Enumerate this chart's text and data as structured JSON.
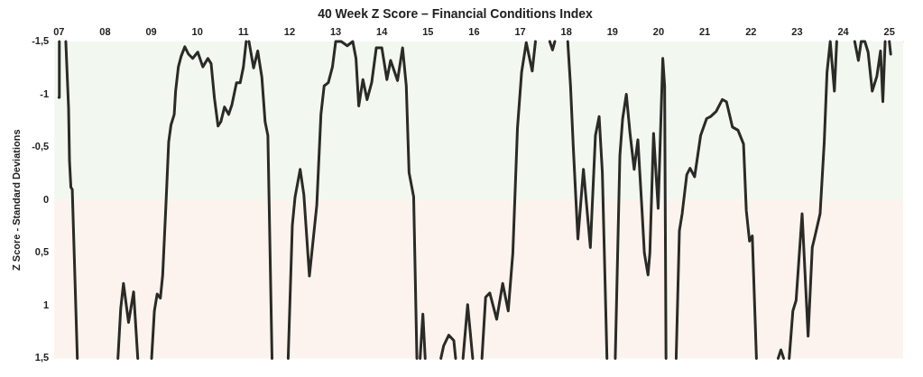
{
  "chart_data": {
    "type": "line",
    "title": "40 Week Z Score – Financial Conditions Index",
    "ylabel": "Z Score - Standard Deviations",
    "x": [
      2007.0,
      2007.01,
      2007.08,
      2007.15,
      2007.21,
      2007.23,
      2007.26,
      2007.29,
      2007.4,
      2007.8,
      2008.28,
      2008.34,
      2008.4,
      2008.51,
      2008.62,
      2008.71,
      2008.85,
      2009.01,
      2009.07,
      2009.13,
      2009.2,
      2009.25,
      2009.32,
      2009.38,
      2009.43,
      2009.5,
      2009.53,
      2009.59,
      2009.65,
      2009.73,
      2009.81,
      2009.9,
      2010.01,
      2010.12,
      2010.23,
      2010.3,
      2010.37,
      2010.45,
      2010.51,
      2010.59,
      2010.68,
      2010.75,
      2010.85,
      2010.93,
      2011.0,
      2011.06,
      2011.09,
      2011.12,
      2011.22,
      2011.31,
      2011.4,
      2011.47,
      2011.53,
      2011.62,
      2011.8,
      2011.97,
      2012.06,
      2012.12,
      2012.23,
      2012.31,
      2012.43,
      2012.59,
      2012.68,
      2012.75,
      2012.84,
      2012.93,
      2013.0,
      2013.12,
      2013.25,
      2013.37,
      2013.44,
      2013.5,
      2013.59,
      2013.68,
      2013.78,
      2013.88,
      2014.0,
      2014.11,
      2014.19,
      2014.34,
      2014.45,
      2014.53,
      2014.59,
      2014.69,
      2014.76,
      2014.8,
      2014.83,
      2014.89,
      2014.94,
      2015.1,
      2015.28,
      2015.34,
      2015.45,
      2015.56,
      2015.6,
      2015.68,
      2015.76,
      2015.86,
      2015.97,
      2016.07,
      2016.17,
      2016.25,
      2016.34,
      2016.49,
      2016.62,
      2016.74,
      2016.84,
      2016.94,
      2017.03,
      2017.13,
      2017.26,
      2017.33,
      2017.5,
      2017.64,
      2017.7,
      2017.75,
      2017.9,
      2018.03,
      2018.09,
      2018.15,
      2018.25,
      2018.37,
      2018.52,
      2018.63,
      2018.71,
      2018.78,
      2018.88,
      2018.97,
      2019.06,
      2019.16,
      2019.22,
      2019.3,
      2019.38,
      2019.47,
      2019.55,
      2019.64,
      2019.69,
      2019.77,
      2019.81,
      2019.89,
      2019.99,
      2020.09,
      2020.13,
      2020.16,
      2020.27,
      2020.38,
      2020.45,
      2020.51,
      2020.61,
      2020.68,
      2020.78,
      2020.91,
      2021.04,
      2021.13,
      2021.25,
      2021.38,
      2021.47,
      2021.6,
      2021.72,
      2021.84,
      2021.9,
      2021.97,
      2022.03,
      2022.12,
      2022.4,
      2022.59,
      2022.65,
      2022.71,
      2022.75,
      2022.83,
      2022.91,
      2022.98,
      2023.11,
      2023.24,
      2023.33,
      2023.39,
      2023.5,
      2023.59,
      2023.65,
      2023.72,
      2023.81,
      2023.86,
      2024.05,
      2024.25,
      2024.33,
      2024.39,
      2024.47,
      2024.54,
      2024.63,
      2024.73,
      2024.81,
      2024.86,
      2024.91,
      2024.95,
      2025.0,
      2025.03
    ],
    "series": [
      {
        "color": "#2a2a26",
        "values": [
          -0.97,
          -1.5,
          null,
          -1.5,
          -0.87,
          -0.37,
          -0.12,
          -0.1,
          1.5,
          null,
          1.5,
          1.03,
          0.79,
          1.16,
          0.87,
          1.5,
          null,
          1.5,
          1.05,
          0.89,
          0.93,
          0.71,
          0.05,
          -0.55,
          -0.71,
          -0.81,
          -1.03,
          -1.26,
          -1.36,
          -1.45,
          -1.38,
          -1.34,
          -1.4,
          -1.26,
          -1.34,
          -1.29,
          -0.97,
          -0.7,
          -0.74,
          -0.88,
          -0.81,
          -0.9,
          -1.11,
          -1.11,
          -1.26,
          -1.5,
          null,
          -1.5,
          -1.25,
          -1.41,
          -1.16,
          -0.74,
          -0.61,
          1.5,
          null,
          1.5,
          0.24,
          -0.03,
          -0.29,
          -0.05,
          0.72,
          0.05,
          -0.81,
          -1.08,
          -1.11,
          -1.26,
          -1.5,
          -1.5,
          -1.46,
          -1.5,
          -1.34,
          -0.89,
          -1.14,
          -0.95,
          -1.11,
          -1.44,
          -1.44,
          -1.14,
          -1.32,
          -1.13,
          -1.44,
          -1.08,
          -0.26,
          -0.03,
          1.5,
          null,
          1.5,
          1.08,
          1.5,
          null,
          1.5,
          1.38,
          1.28,
          1.33,
          1.5,
          null,
          1.5,
          0.99,
          1.5,
          null,
          1.5,
          0.92,
          0.88,
          1.13,
          0.79,
          1.05,
          0.5,
          -0.68,
          -1.21,
          -1.49,
          -1.22,
          -1.5,
          null,
          -1.5,
          -1.42,
          -1.5,
          null,
          -1.5,
          -1.08,
          -0.5,
          0.37,
          -0.29,
          0.45,
          -0.61,
          -0.79,
          -0.26,
          1.5,
          null,
          1.5,
          -0.42,
          -0.77,
          -1.0,
          -0.63,
          -0.29,
          -0.57,
          0.1,
          0.5,
          0.71,
          0.5,
          -0.63,
          0.08,
          -1.34,
          -1.08,
          1.5,
          null,
          1.5,
          0.29,
          0.13,
          -0.24,
          -0.3,
          -0.22,
          -0.61,
          -0.77,
          -0.79,
          -0.84,
          -0.95,
          -0.93,
          -0.69,
          -0.66,
          -0.53,
          0.1,
          0.39,
          0.34,
          1.5,
          null,
          1.5,
          1.42,
          1.5,
          null,
          1.5,
          1.05,
          0.95,
          0.13,
          1.29,
          0.45,
          0.34,
          0.13,
          -0.55,
          -1.21,
          -1.5,
          -1.03,
          -1.5,
          null,
          -1.5,
          -1.32,
          -1.5,
          -1.5,
          -1.4,
          -1.03,
          -1.17,
          -1.41,
          -0.93,
          -1.5,
          null,
          -1.5,
          -1.38
        ]
      }
    ],
    "xlim": [
      2006.9,
      2025.3
    ],
    "xticks": [
      {
        "value": 2007,
        "label": "07"
      },
      {
        "value": 2008,
        "label": "08"
      },
      {
        "value": 2009,
        "label": "09"
      },
      {
        "value": 2010,
        "label": "10"
      },
      {
        "value": 2011,
        "label": "11"
      },
      {
        "value": 2012,
        "label": "12"
      },
      {
        "value": 2013,
        "label": "13"
      },
      {
        "value": 2014,
        "label": "14"
      },
      {
        "value": 2015,
        "label": "15"
      },
      {
        "value": 2016,
        "label": "16"
      },
      {
        "value": 2017,
        "label": "17"
      },
      {
        "value": 2018,
        "label": "18"
      },
      {
        "value": 2019,
        "label": "19"
      },
      {
        "value": 2020,
        "label": "20"
      },
      {
        "value": 2021,
        "label": "21"
      },
      {
        "value": 2022,
        "label": "22"
      },
      {
        "value": 2023,
        "label": "23"
      },
      {
        "value": 2024,
        "label": "24"
      },
      {
        "value": 2025,
        "label": "25"
      }
    ],
    "ylim": [
      1.5,
      -1.5
    ],
    "yticks": [
      {
        "value": -1.5,
        "label": "-1,5"
      },
      {
        "value": -1,
        "label": "-1"
      },
      {
        "value": -0.5,
        "label": "-0,5"
      },
      0,
      {
        "value": 0.5,
        "label": "0,5"
      },
      {
        "value": 1,
        "label": "1"
      },
      {
        "value": 1.5,
        "label": "1,5"
      }
    ],
    "bands": [
      {
        "axis": "y",
        "from": -1.5,
        "to": 0,
        "color": "#f2f7ef"
      },
      {
        "axis": "y",
        "from": 0,
        "to": 1.5,
        "color": "#fdf3ee"
      }
    ],
    "grid": false,
    "legend": false,
    "marker": "none",
    "line_style": "solid"
  }
}
